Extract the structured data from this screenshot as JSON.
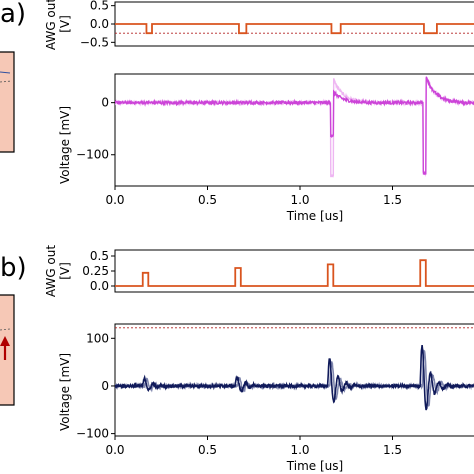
{
  "figure": {
    "panel_a_tag": "a)",
    "panel_b_tag": "b)"
  },
  "colors": {
    "awg": "#d9541e",
    "ref_line": "#b22222",
    "voltage_a": "#cc44d8",
    "voltage_a_light": "#eeb6f2",
    "voltage_b": "#101a5a",
    "voltage_b_light": "#7f86ad",
    "inset_fill": "#f6c8b6"
  },
  "chart_data": [
    {
      "id": "a-awg",
      "type": "line",
      "ylabel_line1": "AWG out",
      "ylabel_line2": "[V]",
      "xlim": [
        0,
        2.0
      ],
      "ylim": [
        -0.6,
        0.6
      ],
      "yticks": [
        0.5,
        0.0,
        -0.5
      ],
      "ytick_labels": [
        "0.5",
        "0.0",
        "−0.5"
      ],
      "ref_line_y": -0.25,
      "baseline": 0.0,
      "pulse_level": -0.25,
      "pulses": [
        [
          0.17,
          0.2
        ],
        [
          0.67,
          0.71
        ],
        [
          1.17,
          1.22
        ],
        [
          1.67,
          1.74
        ]
      ]
    },
    {
      "id": "a-voltage",
      "type": "line",
      "ylabel": "Voltage [mV]",
      "xlabel": "Time [us]",
      "xlim": [
        0,
        2.0
      ],
      "ylim": [
        -160,
        55
      ],
      "yticks": [
        0,
        -100
      ],
      "ytick_labels": [
        "0",
        "−100"
      ],
      "xticks": [
        0.0,
        0.5,
        1.0,
        1.5,
        2.0
      ],
      "xtick_labels": [
        "0.0",
        "0.5",
        "1.0",
        "1.5",
        "2."
      ],
      "noise_mV": 3,
      "events": [
        {
          "t": 1.17,
          "min": -140,
          "max": 45,
          "light": true
        },
        {
          "t": 1.67,
          "min": -135,
          "max": 50,
          "light": false
        }
      ]
    },
    {
      "id": "b-awg",
      "type": "line",
      "ylabel_line1": "AWG out",
      "ylabel_line2": "[V]",
      "xlim": [
        0,
        2.0
      ],
      "ylim": [
        -0.1,
        0.6
      ],
      "yticks": [
        0.5,
        0.25,
        0.0
      ],
      "ytick_labels": [
        "0.5",
        "0.25",
        "0.0"
      ],
      "baseline": 0.0,
      "pulse_levels": [
        0.22,
        0.3,
        0.36,
        0.43
      ],
      "pulses": [
        [
          0.15,
          0.18
        ],
        [
          0.65,
          0.68
        ],
        [
          1.15,
          1.18
        ],
        [
          1.65,
          1.68
        ]
      ]
    },
    {
      "id": "b-voltage",
      "type": "line",
      "ylabel": "Voltage [mV]",
      "xlabel": "Time [us]",
      "xlim": [
        0,
        2.0
      ],
      "ylim": [
        -105,
        130
      ],
      "yticks": [
        100,
        0,
        -100
      ],
      "ytick_labels": [
        "100",
        "0",
        "−100"
      ],
      "xticks": [
        0.0,
        0.5,
        1.0,
        1.5,
        2.0
      ],
      "xtick_labels": [
        "0.0",
        "0.5",
        "1.0",
        "1.5",
        "2."
      ],
      "ref_line_y": 122,
      "noise_mV": 3,
      "events": [
        {
          "t": 0.15,
          "amp": 20
        },
        {
          "t": 0.65,
          "amp": 25
        },
        {
          "t": 1.15,
          "amp": 75
        },
        {
          "t": 1.65,
          "amp": 110
        }
      ]
    }
  ]
}
